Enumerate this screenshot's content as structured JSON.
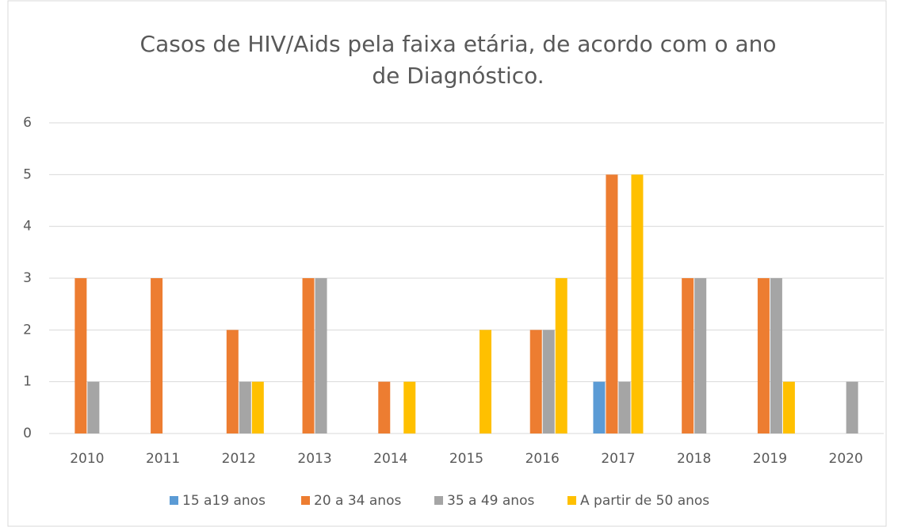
{
  "chart_data": {
    "type": "bar",
    "title": [
      "Casos de HIV/Aids pela faixa etária, de acordo com o ano",
      "de Diagnóstico."
    ],
    "categories": [
      "2010",
      "2011",
      "2012",
      "2013",
      "2014",
      "2015",
      "2016",
      "2017",
      "2018",
      "2019",
      "2020"
    ],
    "series": [
      {
        "name": "15 a19 anos",
        "color": "#5b9bd5",
        "values": [
          0,
          0,
          0,
          0,
          0,
          0,
          0,
          1,
          0,
          0,
          0
        ]
      },
      {
        "name": "20 a 34 anos",
        "color": "#ed7d31",
        "values": [
          3,
          3,
          2,
          3,
          1,
          0,
          2,
          5,
          3,
          3,
          0
        ]
      },
      {
        "name": "35 a 49 anos",
        "color": "#a5a5a5",
        "values": [
          1,
          0,
          1,
          3,
          0,
          0,
          2,
          1,
          3,
          3,
          1
        ]
      },
      {
        "name": "A partir de 50 anos",
        "color": "#ffc000",
        "values": [
          0,
          0,
          1,
          0,
          1,
          2,
          3,
          5,
          0,
          1,
          0
        ]
      }
    ],
    "ylim": [
      0,
      6
    ],
    "yticks": [
      0,
      1,
      2,
      3,
      4,
      5,
      6
    ],
    "grid": true,
    "legend": "bottom"
  }
}
